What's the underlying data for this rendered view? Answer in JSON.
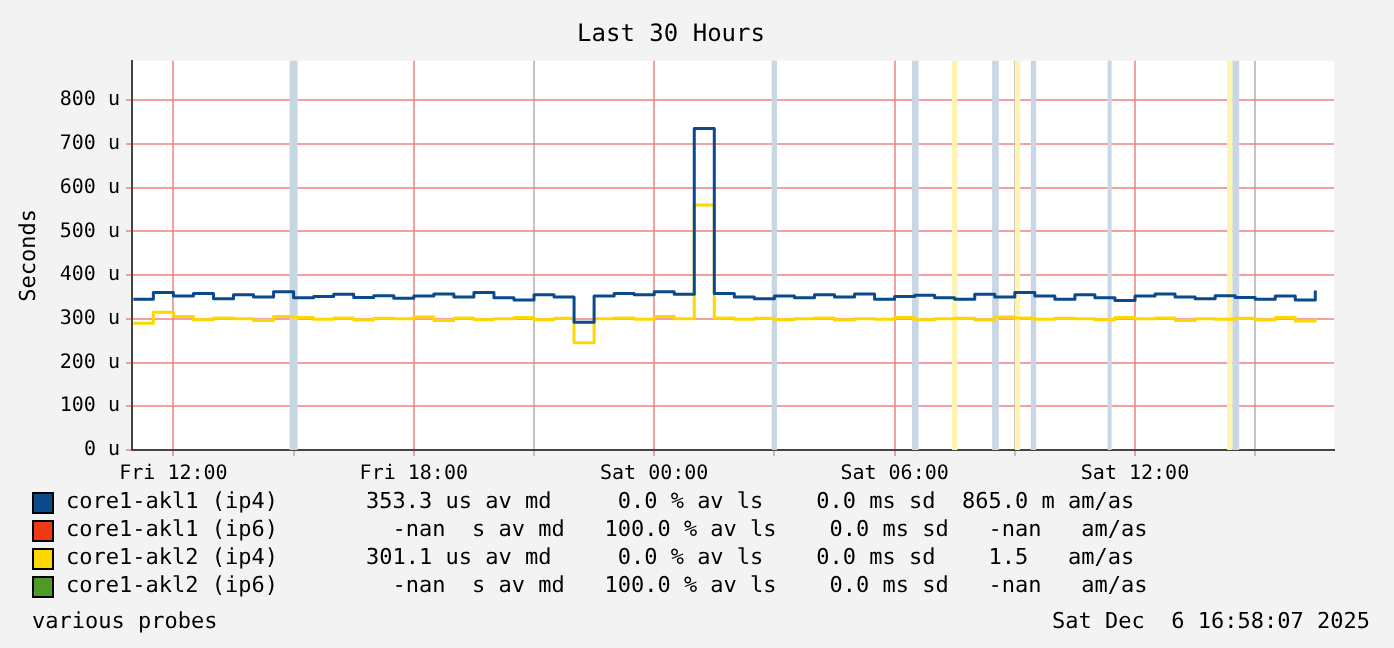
{
  "chart_data": {
    "type": "step",
    "title": "Last 30 Hours",
    "ylabel": "Seconds",
    "x": [
      "2025-12-05T11:00",
      "2025-12-05T11:30",
      "2025-12-05T12:00",
      "2025-12-05T12:30",
      "2025-12-05T13:00",
      "2025-12-05T13:30",
      "2025-12-05T14:00",
      "2025-12-05T14:30",
      "2025-12-05T15:00",
      "2025-12-05T15:30",
      "2025-12-05T16:00",
      "2025-12-05T16:30",
      "2025-12-05T17:00",
      "2025-12-05T17:30",
      "2025-12-05T18:00",
      "2025-12-05T18:30",
      "2025-12-05T19:00",
      "2025-12-05T19:30",
      "2025-12-05T20:00",
      "2025-12-05T20:30",
      "2025-12-05T21:00",
      "2025-12-05T21:30",
      "2025-12-05T22:00",
      "2025-12-05T22:30",
      "2025-12-05T23:00",
      "2025-12-05T23:30",
      "2025-12-06T00:00",
      "2025-12-06T00:30",
      "2025-12-06T01:00",
      "2025-12-06T01:30",
      "2025-12-06T02:00",
      "2025-12-06T02:30",
      "2025-12-06T03:00",
      "2025-12-06T03:30",
      "2025-12-06T04:00",
      "2025-12-06T04:30",
      "2025-12-06T05:00",
      "2025-12-06T05:30",
      "2025-12-06T06:00",
      "2025-12-06T06:30",
      "2025-12-06T07:00",
      "2025-12-06T07:30",
      "2025-12-06T08:00",
      "2025-12-06T08:30",
      "2025-12-06T09:00",
      "2025-12-06T09:30",
      "2025-12-06T10:00",
      "2025-12-06T10:30",
      "2025-12-06T11:00",
      "2025-12-06T11:30",
      "2025-12-06T12:00",
      "2025-12-06T12:30",
      "2025-12-06T13:00",
      "2025-12-06T13:30",
      "2025-12-06T14:00",
      "2025-12-06T14:30",
      "2025-12-06T15:00",
      "2025-12-06T15:30",
      "2025-12-06T16:00",
      "2025-12-06T16:30"
    ],
    "series": [
      {
        "name": "core1-akl1 (ip4)",
        "color": "#0b4a8a",
        "values": [
          345,
          360,
          352,
          358,
          346,
          355,
          350,
          362,
          348,
          351,
          356,
          349,
          353,
          347,
          352,
          357,
          350,
          360,
          348,
          343,
          355,
          350,
          292,
          352,
          358,
          355,
          362,
          356,
          735,
          358,
          350,
          346,
          352,
          348,
          355,
          350,
          357,
          345,
          351,
          354,
          348,
          345,
          356,
          350,
          360,
          352,
          345,
          355,
          348,
          342,
          352,
          357,
          350,
          346,
          353,
          349,
          345,
          352,
          343,
          365
        ]
      },
      {
        "name": "core1-akl1 (ip6)",
        "color": "#ee3a12",
        "values": [
          null,
          null,
          null,
          null,
          null,
          null,
          null,
          null,
          null,
          null,
          null,
          null,
          null,
          null,
          null,
          null,
          null,
          null,
          null,
          null,
          null,
          null,
          null,
          null,
          null,
          null,
          null,
          null,
          null,
          null,
          null,
          null,
          null,
          null,
          null,
          null,
          null,
          null,
          null,
          null,
          null,
          null,
          null,
          null,
          null,
          null,
          null,
          null,
          null,
          null,
          null,
          null,
          null,
          null,
          null,
          null,
          null,
          null,
          null,
          null
        ]
      },
      {
        "name": "core1-akl2 (ip4)",
        "color": "#ffd700",
        "values": [
          290,
          315,
          305,
          298,
          302,
          300,
          296,
          305,
          303,
          299,
          302,
          297,
          301,
          300,
          304,
          296,
          302,
          298,
          300,
          303,
          298,
          301,
          245,
          300,
          302,
          299,
          305,
          300,
          560,
          302,
          299,
          301,
          298,
          300,
          302,
          297,
          300,
          299,
          303,
          298,
          300,
          301,
          297,
          304,
          302,
          299,
          301,
          300,
          298,
          303,
          300,
          302,
          296,
          300,
          299,
          301,
          297,
          303,
          295,
          300
        ]
      },
      {
        "name": "core1-akl2 (ip6)",
        "color": "#4f9a21",
        "values": [
          null,
          null,
          null,
          null,
          null,
          null,
          null,
          null,
          null,
          null,
          null,
          null,
          null,
          null,
          null,
          null,
          null,
          null,
          null,
          null,
          null,
          null,
          null,
          null,
          null,
          null,
          null,
          null,
          null,
          null,
          null,
          null,
          null,
          null,
          null,
          null,
          null,
          null,
          null,
          null,
          null,
          null,
          null,
          null,
          null,
          null,
          null,
          null,
          null,
          null,
          null,
          null,
          null,
          null,
          null,
          null,
          null,
          null,
          null,
          null
        ]
      }
    ],
    "xlim": [
      "2025-12-05T10:58",
      "2025-12-06T16:58"
    ],
    "xticks": [
      {
        "value": "2025-12-05T12:00",
        "label": "Fri 12:00"
      },
      {
        "value": "2025-12-05T15:00",
        "label": null
      },
      {
        "value": "2025-12-05T18:00",
        "label": "Fri 18:00"
      },
      {
        "value": "2025-12-05T21:00",
        "label": null
      },
      {
        "value": "2025-12-06T00:00",
        "label": "Sat 00:00"
      },
      {
        "value": "2025-12-06T03:00",
        "label": null
      },
      {
        "value": "2025-12-06T06:00",
        "label": "Sat 06:00"
      },
      {
        "value": "2025-12-06T09:00",
        "label": null
      },
      {
        "value": "2025-12-06T12:00",
        "label": "Sat 12:00"
      },
      {
        "value": "2025-12-06T15:00",
        "label": null
      }
    ],
    "ylim": [
      0,
      890
    ],
    "yticks": [
      {
        "value": 0,
        "label": "0 u"
      },
      {
        "value": 100,
        "label": "100 u"
      },
      {
        "value": 200,
        "label": "200 u"
      },
      {
        "value": 300,
        "label": "300 u"
      },
      {
        "value": 400,
        "label": "400 u"
      },
      {
        "value": 500,
        "label": "500 u"
      },
      {
        "value": 600,
        "label": "600 u"
      },
      {
        "value": 700,
        "label": "700 u"
      },
      {
        "value": 800,
        "label": "800 u"
      }
    ],
    "bands": [
      {
        "axis": "x",
        "from": "2025-12-05T14:54",
        "to": "2025-12-05T15:06",
        "color": "#c9d6e3"
      },
      {
        "axis": "x",
        "from": "2025-12-06T02:56",
        "to": "2025-12-06T03:04",
        "color": "#c9d6e3"
      },
      {
        "axis": "x",
        "from": "2025-12-06T06:26",
        "to": "2025-12-06T06:36",
        "color": "#c9d6e3"
      },
      {
        "axis": "x",
        "from": "2025-12-06T07:26",
        "to": "2025-12-06T07:34",
        "color": "#fff3b0"
      },
      {
        "axis": "x",
        "from": "2025-12-06T08:26",
        "to": "2025-12-06T08:36",
        "color": "#c9d6e3"
      },
      {
        "axis": "x",
        "from": "2025-12-06T09:00",
        "to": "2025-12-06T09:08",
        "color": "#fff3b0"
      },
      {
        "axis": "x",
        "from": "2025-12-06T09:24",
        "to": "2025-12-06T09:32",
        "color": "#c9d6e3"
      },
      {
        "axis": "x",
        "from": "2025-12-06T11:19",
        "to": "2025-12-06T11:25",
        "color": "#c9d6e3"
      },
      {
        "axis": "x",
        "from": "2025-12-06T14:18",
        "to": "2025-12-06T14:26",
        "color": "#fff3b0"
      },
      {
        "axis": "x",
        "from": "2025-12-06T14:26",
        "to": "2025-12-06T14:36",
        "color": "#c9d6e3"
      }
    ],
    "annotations": [
      "353.3 us av md     0.0 % av ls    0.0 ms sd  865.0 m am/as",
      "  -nan  s av md   100.0 % av ls    0.0 ms sd   -nan   am/as",
      "301.1 us av md     0.0 % av ls    0.0 ms sd    1.5   am/as",
      "  -nan  s av md   100.0 % av ls    0.0 ms sd   -nan   am/as",
      "various probes",
      "Sat Dec  6 16:58:07 2025"
    ],
    "grid": true,
    "legend": "bottom",
    "marker": "none",
    "line_style": "solid"
  }
}
